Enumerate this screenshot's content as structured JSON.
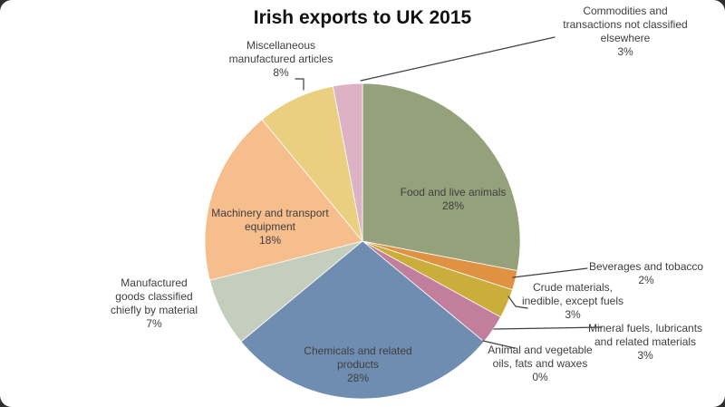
{
  "theme": {
    "background": "#ffffff",
    "corner_backdrop": "#2f2f2f",
    "text_color": "#3f3f3f",
    "title_color": "#111111",
    "leader_line_color": "#3f3f3f"
  },
  "chart_data": {
    "type": "pie",
    "title": "Irish exports to UK 2015",
    "units": "percent",
    "start_angle_deg": 0,
    "direction": "clockwise",
    "legend_position": "none",
    "label_style": "category name + percentage, large slices labeled inside, small slices outside with leader lines",
    "slices": [
      {
        "label": "Food and live animals",
        "label_lines": [
          "Food and live animals"
        ],
        "value": 28,
        "pct": "28%",
        "color": "#94A17B",
        "label_placement": "inside"
      },
      {
        "label": "Beverages and tobacco",
        "label_lines": [
          "Beverages and tobacco"
        ],
        "value": 2,
        "pct": "2%",
        "color": "#E09243",
        "label_placement": "outside"
      },
      {
        "label": "Crude materials, inedible, except fuels",
        "label_lines": [
          "Crude materials,",
          "inedible, except fuels"
        ],
        "value": 3,
        "pct": "3%",
        "color": "#CBAD3B",
        "label_placement": "outside"
      },
      {
        "label": "Mineral fuels, lubricants and related materials",
        "label_lines": [
          "Mineral fuels, lubricants",
          "and related materials"
        ],
        "value": 3,
        "pct": "3%",
        "color": "#C17F9D",
        "label_placement": "outside"
      },
      {
        "label": "Animal and vegetable oils, fats and waxes",
        "label_lines": [
          "Animal and vegetable",
          "oils, fats and waxes"
        ],
        "value": 0,
        "pct": "0%",
        "color": "#9CB8C9",
        "label_placement": "outside"
      },
      {
        "label": "Chemicals and related products",
        "label_lines": [
          "Chemicals and related",
          "products"
        ],
        "value": 28,
        "pct": "28%",
        "color": "#6F8DB1",
        "label_placement": "inside"
      },
      {
        "label": "Manufactured goods classified chiefly by material",
        "label_lines": [
          "Manufactured",
          "goods classified",
          "chiefly by material"
        ],
        "value": 7,
        "pct": "7%",
        "color": "#C5CEBC",
        "label_placement": "outside"
      },
      {
        "label": "Machinery and transport equipment",
        "label_lines": [
          "Machinery and transport",
          "equipment"
        ],
        "value": 18,
        "pct": "18%",
        "color": "#F6BD8D",
        "label_placement": "inside"
      },
      {
        "label": "Miscellaneous manufactured articles",
        "label_lines": [
          "Miscellaneous",
          "manufactured articles"
        ],
        "value": 8,
        "pct": "8%",
        "color": "#E9CF7F",
        "label_placement": "outside"
      },
      {
        "label": "Commodities and transactions not classified elsewhere",
        "label_lines": [
          "Commodities and",
          "transactions not classified",
          "elsewhere"
        ],
        "value": 3,
        "pct": "3%",
        "color": "#DCB2C4",
        "label_placement": "outside"
      }
    ]
  }
}
